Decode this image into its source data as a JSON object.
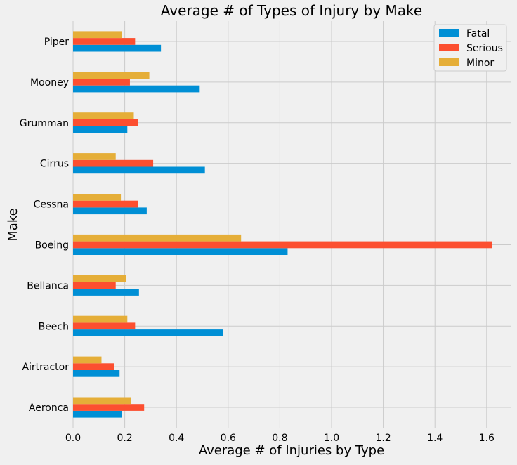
{
  "chart_data": {
    "type": "bar",
    "orientation": "horizontal",
    "title": "Average # of Types of Injury by Make",
    "xlabel": "Average # of Injuries by Type",
    "ylabel": "Make",
    "categories": [
      "Aeronca",
      "Airtractor",
      "Beech",
      "Bellanca",
      "Boeing",
      "Cessna",
      "Cirrus",
      "Grumman",
      "Mooney",
      "Piper"
    ],
    "series": [
      {
        "name": "Fatal",
        "color": "#008fd5",
        "values": [
          0.19,
          0.18,
          0.58,
          0.255,
          0.83,
          0.285,
          0.51,
          0.21,
          0.49,
          0.34
        ]
      },
      {
        "name": "Serious",
        "color": "#fc4f30",
        "values": [
          0.275,
          0.16,
          0.24,
          0.165,
          1.62,
          0.25,
          0.31,
          0.25,
          0.22,
          0.24
        ]
      },
      {
        "name": "Minor",
        "color": "#e5ae38",
        "values": [
          0.225,
          0.11,
          0.21,
          0.205,
          0.65,
          0.185,
          0.165,
          0.235,
          0.295,
          0.19
        ]
      }
    ],
    "xticks": [
      "0.0",
      "0.2",
      "0.4",
      "0.6",
      "0.8",
      "1.0",
      "1.2",
      "1.4",
      "1.6"
    ],
    "xlim": [
      0,
      1.7
    ],
    "grid": true,
    "legend_position": "top-right"
  }
}
